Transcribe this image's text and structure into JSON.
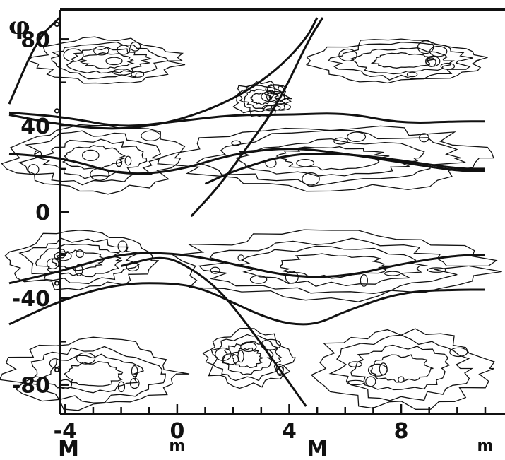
{
  "chart_data": {
    "type": "contour",
    "ylabel": "φ",
    "y_ticks": [
      {
        "value": 80,
        "label": "80"
      },
      {
        "value": 40,
        "label": "40"
      },
      {
        "value": 0,
        "label": "0"
      },
      {
        "value": -40,
        "label": "-40"
      },
      {
        "value": -80,
        "label": "-80"
      }
    ],
    "y_tick_suffix": "°",
    "x_ticks": [
      {
        "value": -4,
        "label": "-4"
      },
      {
        "value": 0,
        "label": "0"
      },
      {
        "value": 4,
        "label": "4"
      },
      {
        "value": 8,
        "label": "8"
      }
    ],
    "x_annotations": [
      {
        "value": -6,
        "label": "M",
        "row": "base"
      },
      {
        "value": 0,
        "label": "m",
        "row": "sub"
      },
      {
        "value": 5,
        "label": "M",
        "row": "base"
      },
      {
        "value": 11,
        "label": "m",
        "row": "sub"
      }
    ],
    "xlim": [
      -6,
      11
    ],
    "ylim": [
      -90,
      90
    ],
    "bands_note_values": {
      "band_latitudes": [
        70,
        25,
        -20,
        -70
      ]
    },
    "curves": [
      {
        "points": [
          [
            -6,
            50
          ],
          [
            -5,
            80
          ],
          [
            -4.2,
            90
          ]
        ]
      },
      {
        "points": [
          [
            -6,
            45
          ],
          [
            -4,
            40
          ],
          [
            -2,
            38
          ],
          [
            0,
            42
          ],
          [
            2,
            52
          ],
          [
            3.5,
            65
          ],
          [
            4.6,
            80
          ],
          [
            5,
            90
          ]
        ]
      },
      {
        "points": [
          [
            0.5,
            -2
          ],
          [
            1.5,
            12
          ],
          [
            2.5,
            30
          ],
          [
            3.6,
            50
          ],
          [
            4.7,
            80
          ],
          [
            5.2,
            90
          ]
        ]
      },
      {
        "points": [
          [
            -6,
            46
          ],
          [
            -4,
            44
          ],
          [
            -2,
            39
          ],
          [
            0,
            42
          ],
          [
            2,
            45
          ],
          [
            4,
            45
          ],
          [
            6,
            46
          ],
          [
            8,
            41
          ],
          [
            10,
            42
          ],
          [
            11,
            42
          ]
        ]
      },
      {
        "points": [
          [
            -6,
            27
          ],
          [
            -4,
            25
          ],
          [
            -2,
            17
          ],
          [
            0,
            19
          ],
          [
            2,
            27
          ],
          [
            4,
            30
          ],
          [
            6,
            27
          ],
          [
            8,
            23
          ],
          [
            10,
            19
          ],
          [
            11,
            19
          ]
        ]
      },
      {
        "points": [
          [
            1,
            13
          ],
          [
            2,
            19
          ],
          [
            4,
            27
          ],
          [
            6,
            27
          ],
          [
            8,
            24
          ],
          [
            10,
            20
          ],
          [
            11,
            20
          ]
        ]
      },
      {
        "points": [
          [
            -6,
            -33
          ],
          [
            -4,
            -27
          ],
          [
            -2,
            -19
          ],
          [
            0,
            -19
          ],
          [
            2,
            -24
          ],
          [
            4,
            -30
          ],
          [
            6,
            -30
          ],
          [
            8,
            -24
          ],
          [
            10,
            -20
          ],
          [
            11,
            -20
          ]
        ]
      },
      {
        "points": [
          [
            -6,
            -52
          ],
          [
            -4,
            -40
          ],
          [
            -2,
            -33
          ],
          [
            0,
            -33
          ],
          [
            1,
            -36
          ],
          [
            2,
            -42
          ],
          [
            3,
            -48
          ],
          [
            4,
            -52
          ],
          [
            5,
            -52
          ],
          [
            6,
            -46
          ],
          [
            8,
            -37
          ],
          [
            10,
            -36
          ],
          [
            11,
            -36
          ]
        ]
      },
      {
        "points": [
          [
            -2,
            -25
          ],
          [
            -0.5,
            -20
          ],
          [
            0.5,
            -26
          ],
          [
            1.5,
            -36
          ],
          [
            2.5,
            -52
          ],
          [
            3.5,
            -70
          ],
          [
            4.6,
            -90
          ]
        ]
      }
    ],
    "contour_regions": [
      {
        "x": [
          -5,
          0
        ],
        "y": [
          60,
          80
        ]
      },
      {
        "x": [
          2,
          4
        ],
        "y": [
          45,
          60
        ]
      },
      {
        "x": [
          5,
          11
        ],
        "y": [
          60,
          80
        ]
      },
      {
        "x": [
          -6,
          0
        ],
        "y": [
          10,
          40
        ]
      },
      {
        "x": [
          0,
          11
        ],
        "y": [
          10,
          40
        ]
      },
      {
        "x": [
          -6,
          -1
        ],
        "y": [
          -35,
          -10
        ]
      },
      {
        "x": [
          0,
          11
        ],
        "y": [
          -40,
          -10
        ]
      },
      {
        "x": [
          -6,
          0
        ],
        "y": [
          -90,
          -60
        ]
      },
      {
        "x": [
          1,
          4
        ],
        "y": [
          -80,
          -55
        ]
      },
      {
        "x": [
          5,
          11
        ],
        "y": [
          -90,
          -55
        ]
      }
    ]
  }
}
